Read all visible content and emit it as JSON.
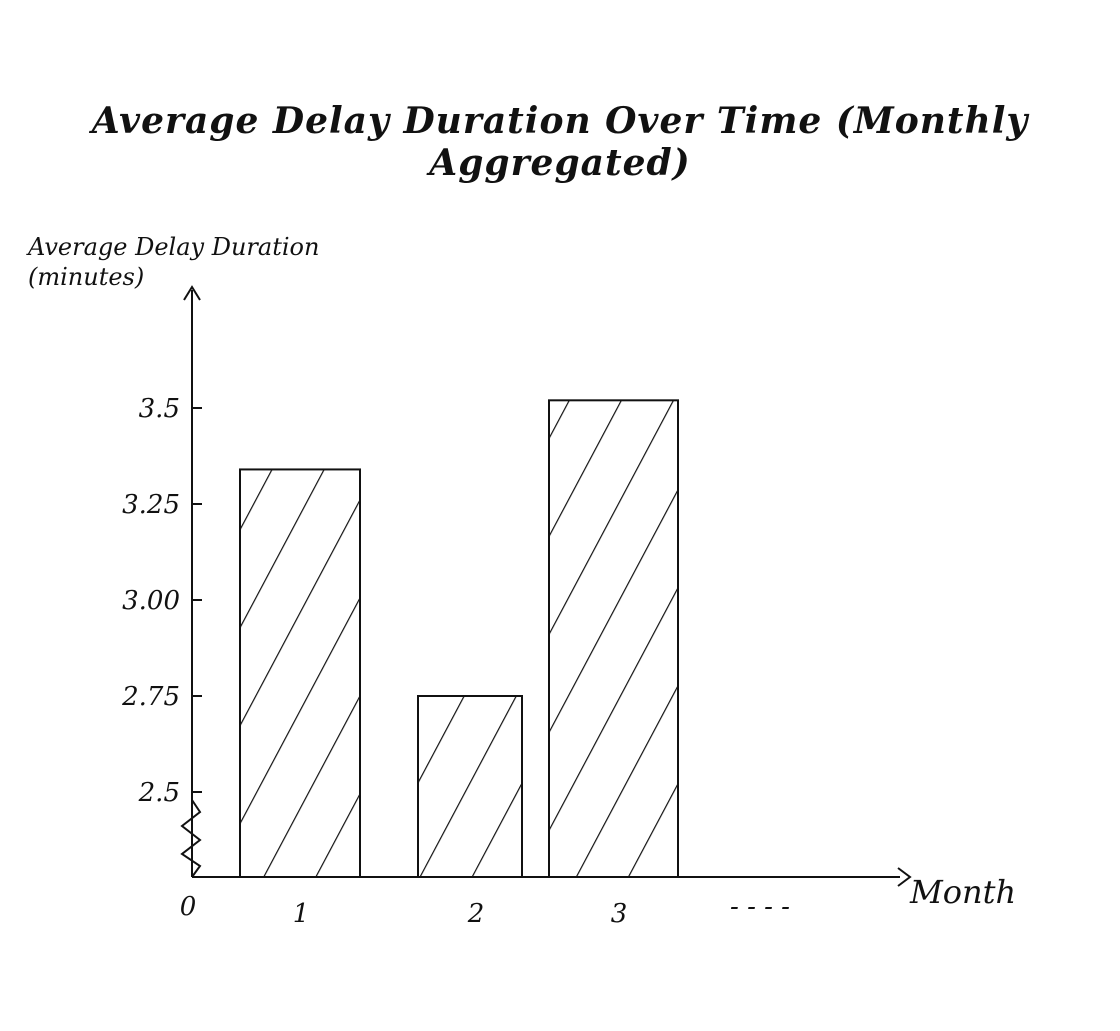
{
  "chart_data": {
    "type": "bar",
    "title": "Average Delay Duration Over Time (Monthly Aggregated)",
    "ylabel": "Average Delay Duration (minutes)",
    "xlabel": "Month",
    "categories": [
      "1",
      "2",
      "3"
    ],
    "values": [
      3.34,
      2.75,
      3.52
    ],
    "x_origin_label": "0",
    "x_ellipsis": "- - - -",
    "y_ticks": [
      {
        "value": 2.5,
        "label": "2.5"
      },
      {
        "value": 2.75,
        "label": "2.75"
      },
      {
        "value": 3.0,
        "label": "3.00"
      },
      {
        "value": 3.25,
        "label": "3.25"
      },
      {
        "value": 3.5,
        "label": "3.5"
      }
    ],
    "ylim": [
      2.5,
      3.5
    ],
    "axis_break": true,
    "bar_fill": "hatched",
    "grid": false,
    "legend": "none"
  }
}
